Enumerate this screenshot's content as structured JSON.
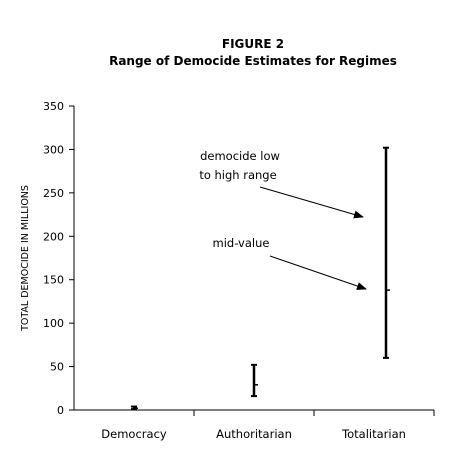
{
  "chart_data": {
    "type": "range",
    "title": "FIGURE 2",
    "subtitle": "Range of Democide Estimates for Regimes",
    "xlabel": "",
    "ylabel": "TOTAL DEMOCIDE IN MILLIONS",
    "ylim": [
      0,
      350
    ],
    "yticks": [
      0,
      50,
      100,
      150,
      200,
      250,
      300,
      350
    ],
    "grid": false,
    "categories": [
      "Democracy",
      "Authoritarian",
      "Totalitarian"
    ],
    "series": [
      {
        "low": [
          1,
          16,
          60
        ],
        "high": [
          4,
          52,
          302
        ],
        "mid": [
          2,
          29,
          138
        ]
      }
    ],
    "annotations": [
      {
        "text": [
          "democide low",
          "to high range"
        ],
        "points_to": "Totalitarian range"
      },
      {
        "text": [
          "mid-value"
        ],
        "points_to": "Totalitarian mid-value"
      }
    ],
    "color": "#000000"
  }
}
